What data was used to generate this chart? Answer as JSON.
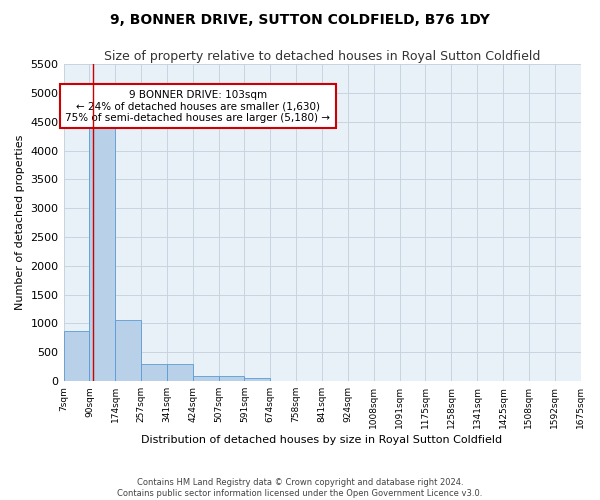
{
  "title": "9, BONNER DRIVE, SUTTON COLDFIELD, B76 1DY",
  "subtitle": "Size of property relative to detached houses in Royal Sutton Coldfield",
  "xlabel": "Distribution of detached houses by size in Royal Sutton Coldfield",
  "ylabel": "Number of detached properties",
  "footer_line1": "Contains HM Land Registry data © Crown copyright and database right 2024.",
  "footer_line2": "Contains public sector information licensed under the Open Government Licence v3.0.",
  "bin_labels": [
    "7sqm",
    "90sqm",
    "174sqm",
    "257sqm",
    "341sqm",
    "424sqm",
    "507sqm",
    "591sqm",
    "674sqm",
    "758sqm",
    "841sqm",
    "924sqm",
    "1008sqm",
    "1091sqm",
    "1175sqm",
    "1258sqm",
    "1341sqm",
    "1425sqm",
    "1508sqm",
    "1592sqm",
    "1675sqm"
  ],
  "bar_values": [
    870,
    4570,
    1060,
    290,
    290,
    90,
    90,
    50,
    0,
    0,
    0,
    0,
    0,
    0,
    0,
    0,
    0,
    0,
    0,
    0
  ],
  "bar_color": "#b8d0e8",
  "bar_edge_color": "#5b9bd5",
  "property_sqm": 103,
  "annotation_text": "9 BONNER DRIVE: 103sqm\n← 24% of detached houses are smaller (1,630)\n75% of semi-detached houses are larger (5,180) →",
  "annotation_box_color": "#ffffff",
  "annotation_box_edge": "#cc0000",
  "red_line_color": "#cc0000",
  "ylim": [
    0,
    5500
  ],
  "yticks": [
    0,
    500,
    1000,
    1500,
    2000,
    2500,
    3000,
    3500,
    4000,
    4500,
    5000,
    5500
  ],
  "grid_color": "#c8d4e0",
  "bg_color": "#e8f0f8",
  "title_fontsize": 10,
  "subtitle_fontsize": 9
}
